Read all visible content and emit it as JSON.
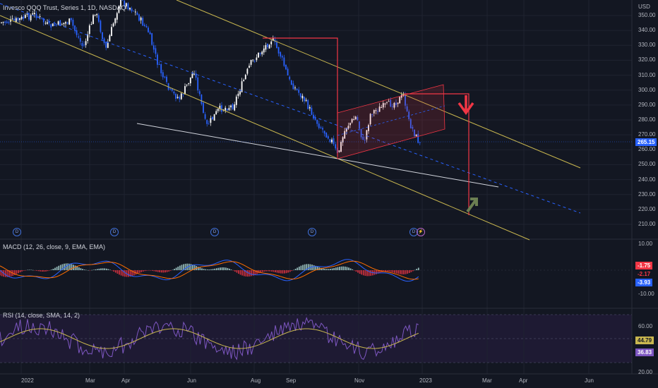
{
  "main_pane": {
    "title": "Invesco QQQ Trust, Series 1, 1D, NASDAQ",
    "unit": "USD",
    "price_ticks": [
      "350.00",
      "340.00",
      "330.00",
      "320.00",
      "310.00",
      "300.00",
      "290.00",
      "280.00",
      "270.00",
      "260.00",
      "250.00",
      "240.00",
      "230.00",
      "220.00",
      "210.00"
    ],
    "last_price": "265.15",
    "dividend_marker": "D",
    "lightning_marker": "⚡"
  },
  "macd_pane": {
    "title": "MACD (12, 26, close, 9, EMA, EMA)",
    "ticks": [
      "10.00",
      "-10.00"
    ],
    "tags": {
      "signal": "-1.75",
      "hist": "-2.17",
      "macd": "-3.93"
    }
  },
  "rsi_pane": {
    "title": "RSI (14, close, SMA, 14, 2)",
    "ticks": [
      "60.00",
      "20.00"
    ],
    "tags": {
      "sma": "44.79",
      "rsi": "36.83"
    }
  },
  "time_axis": [
    "2022",
    "Mar",
    "Apr",
    "Jun",
    "Aug",
    "Sep",
    "Nov",
    "2023",
    "Mar",
    "Apr",
    "Jun"
  ],
  "colors": {
    "background": "#131722",
    "up_candle": "#ffffff",
    "down_candle": "#2962ff",
    "trendline": "#c9b74f",
    "red": "#f23645",
    "macd_line": "#2962ff",
    "signal_line": "#ff6d00",
    "rsi_line": "#7e57c2",
    "rsi_sma": "#c9b74f",
    "arrow_green": "#6b7f52"
  }
}
